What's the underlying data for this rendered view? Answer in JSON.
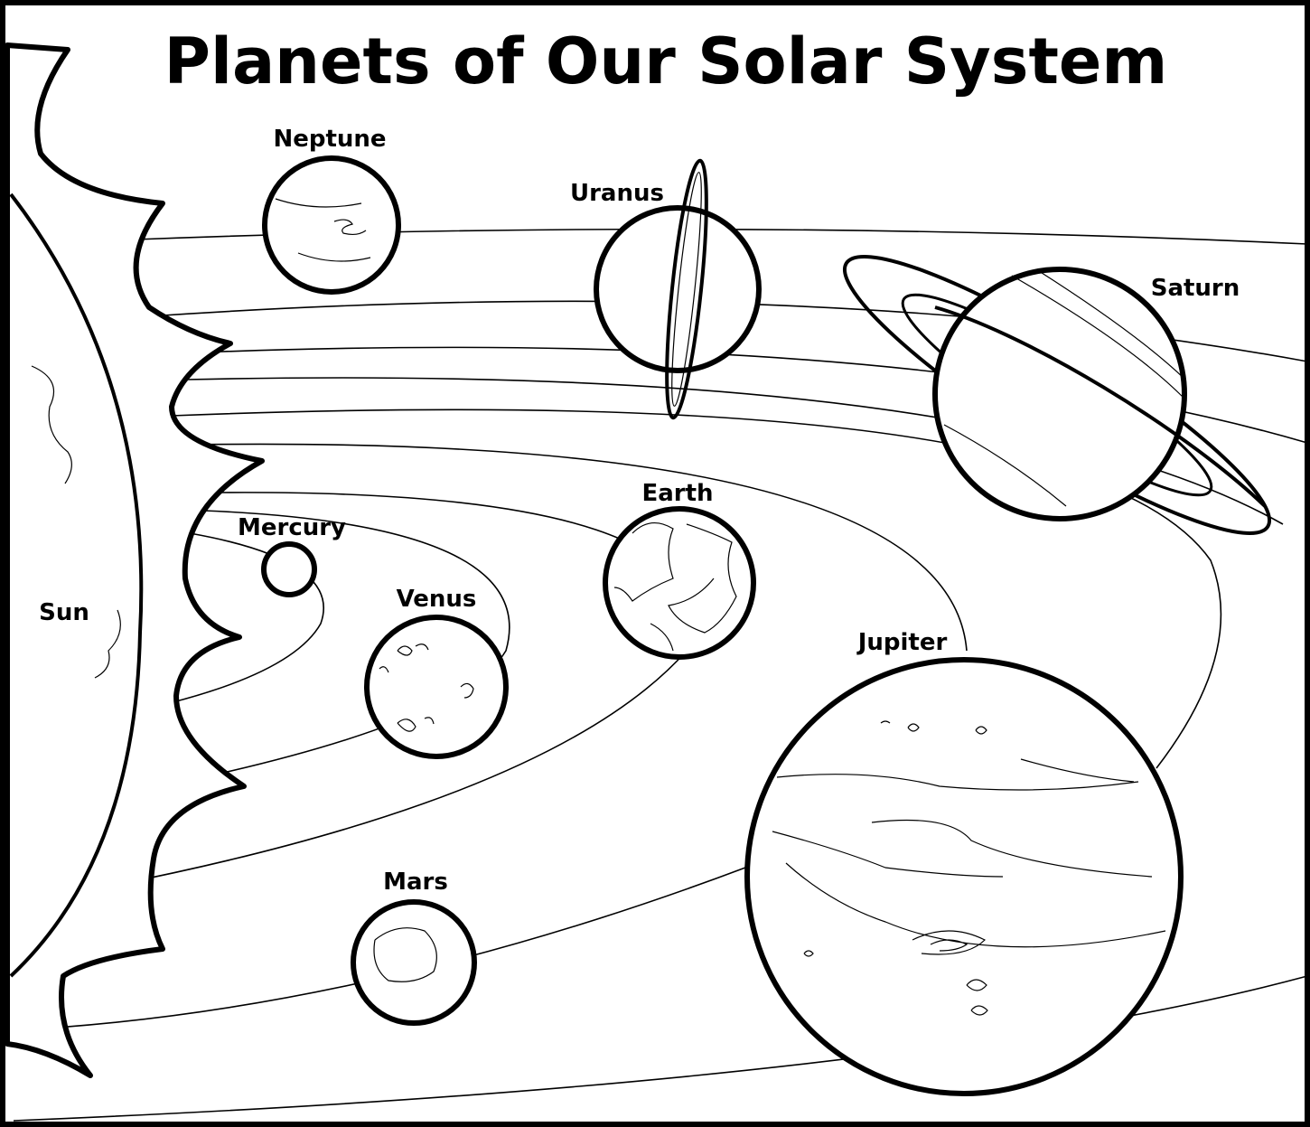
{
  "header": {
    "title": "Planets of Our Solar System"
  },
  "bodies": [
    {
      "label": "Sun"
    },
    {
      "label": "Mercury"
    },
    {
      "label": "Venus"
    },
    {
      "label": "Earth"
    },
    {
      "label": "Mars"
    },
    {
      "label": "Jupiter"
    },
    {
      "label": "Saturn"
    },
    {
      "label": "Uranus"
    },
    {
      "label": "Neptune"
    }
  ]
}
